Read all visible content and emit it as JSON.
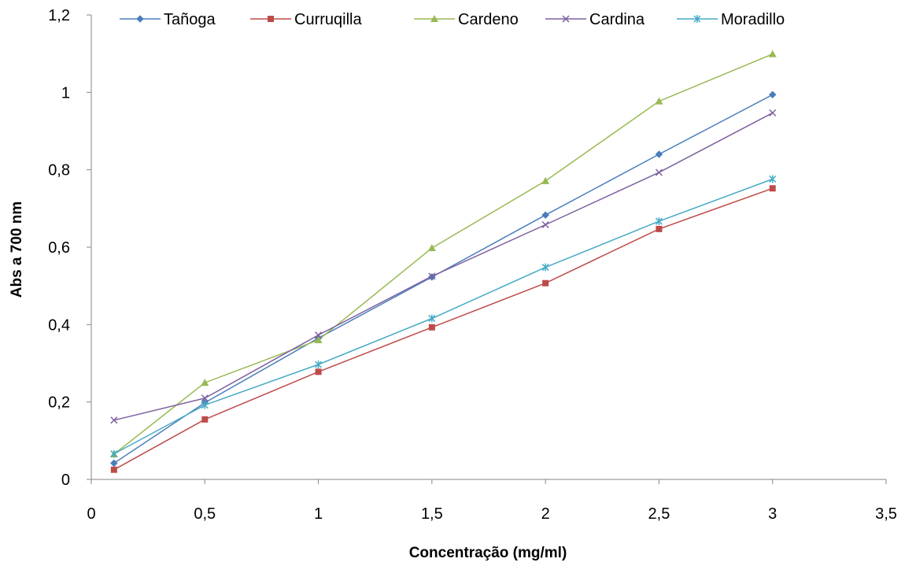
{
  "chart_data": {
    "type": "line",
    "xlabel": "Concentração (mg/ml)",
    "ylabel": "Abs a 700 nm",
    "xlim": [
      0,
      3.5
    ],
    "ylim": [
      0,
      1.2
    ],
    "xticks": [
      0,
      0.5,
      1,
      1.5,
      2,
      2.5,
      3,
      3.5
    ],
    "yticks": [
      0,
      0.2,
      0.4,
      0.6,
      0.8,
      1,
      1.2
    ],
    "xtick_labels": [
      "0",
      "0,5",
      "1",
      "1,5",
      "2",
      "2,5",
      "3",
      "3,5"
    ],
    "ytick_labels": [
      "0",
      "0,2",
      "0,4",
      "0,6",
      "0,8",
      "1",
      "1,2"
    ],
    "grid": false,
    "legend_position": "top",
    "x": [
      0.1,
      0.5,
      1,
      1.5,
      2,
      2.5,
      3
    ],
    "series": [
      {
        "name": "Tañoga",
        "color": "#4a7ebb",
        "marker": "diamond",
        "values": [
          0.042,
          0.198,
          0.365,
          0.523,
          0.683,
          0.84,
          0.994
        ]
      },
      {
        "name": "Curruqilla",
        "color": "#be4b48",
        "marker": "square",
        "values": [
          0.025,
          0.155,
          0.278,
          0.393,
          0.507,
          0.647,
          0.752
        ]
      },
      {
        "name": "Cardeno",
        "color": "#98b954",
        "marker": "triangle",
        "values": [
          0.065,
          0.25,
          0.36,
          0.598,
          0.771,
          0.977,
          1.099
        ]
      },
      {
        "name": "Cardina",
        "color": "#7d60a0",
        "marker": "x",
        "values": [
          0.153,
          0.21,
          0.373,
          0.525,
          0.658,
          0.793,
          0.947
        ]
      },
      {
        "name": "Moradillo",
        "color": "#46aac5",
        "marker": "star",
        "values": [
          0.066,
          0.192,
          0.297,
          0.416,
          0.548,
          0.667,
          0.776
        ]
      }
    ]
  }
}
